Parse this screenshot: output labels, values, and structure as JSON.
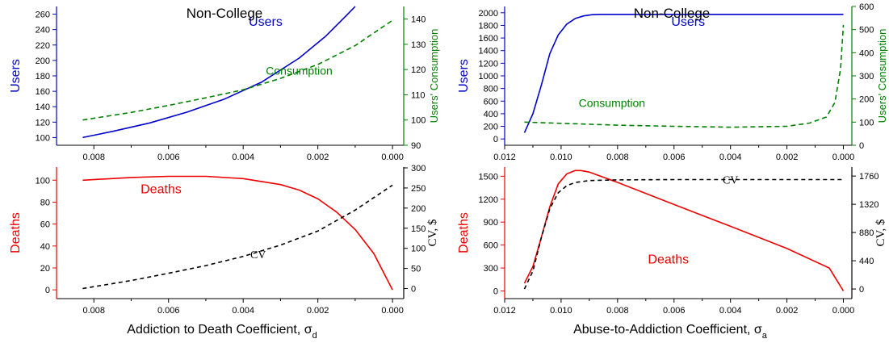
{
  "colors": {
    "blue": "#0000cc",
    "green": "#008000",
    "red": "#ee0000",
    "black": "#000000"
  },
  "chart_data": [
    {
      "id": "lt",
      "type": "line",
      "title": "Non-College",
      "xlim": [
        0.009,
        -0.0003
      ],
      "xticks": [
        0.008,
        0.006,
        0.004,
        0.002,
        0.0
      ],
      "xticklabels": [
        "0.008",
        "0.006",
        "0.004",
        "0.002",
        "0.000"
      ],
      "left_axis": {
        "label": "Users",
        "ylim": [
          90,
          270
        ],
        "ticks": [
          100,
          120,
          140,
          160,
          180,
          200,
          220,
          240,
          260
        ],
        "color": "blue"
      },
      "right_axis": {
        "label": "Users' Consumption",
        "ylim": [
          90,
          145
        ],
        "ticks": [
          90,
          100,
          110,
          120,
          130,
          140
        ],
        "color": "green"
      },
      "series": [
        {
          "name": "Users",
          "axis": "left",
          "color": "blue",
          "dash": "",
          "x": [
            0.0083,
            0.0075,
            0.0065,
            0.0055,
            0.0045,
            0.0035,
            0.0025,
            0.0018,
            0.0012,
            0.001
          ],
          "y": [
            100,
            108,
            119,
            133,
            150,
            172,
            203,
            231,
            260,
            270
          ]
        },
        {
          "name": "Consumption",
          "axis": "right",
          "color": "green",
          "dash": "6,4",
          "x": [
            0.0083,
            0.007,
            0.006,
            0.005,
            0.004,
            0.003,
            0.002,
            0.001,
            0.0
          ],
          "y": [
            100,
            103,
            105.8,
            108.8,
            112,
            116.5,
            122,
            129.5,
            139.5
          ]
        }
      ],
      "annotations": [
        {
          "text": "Users",
          "series": 0,
          "color": "blue"
        },
        {
          "text": "Consumption",
          "series": 1,
          "color": "green"
        }
      ]
    },
    {
      "id": "lb",
      "type": "line",
      "xlim": [
        0.009,
        -0.0003
      ],
      "xticks": [
        0.008,
        0.006,
        0.004,
        0.002,
        0.0
      ],
      "xticklabels": [
        "0.008",
        "0.006",
        "0.004",
        "0.002",
        "0.000"
      ],
      "xlabel": "Addiction to Death Coefficient, σ",
      "xlabel_sub": "d",
      "left_axis": {
        "label": "Deaths",
        "ylim": [
          -8,
          112
        ],
        "ticks": [
          0,
          20,
          40,
          60,
          80,
          100
        ],
        "color": "red"
      },
      "right_axis": {
        "label": "CV, $",
        "ylim": [
          -25,
          302
        ],
        "ticks": [
          0,
          50,
          100,
          150,
          200,
          250,
          300
        ],
        "color": "black"
      },
      "series": [
        {
          "name": "Deaths",
          "axis": "left",
          "color": "red",
          "dash": "",
          "x": [
            0.0083,
            0.007,
            0.006,
            0.005,
            0.004,
            0.003,
            0.0025,
            0.002,
            0.0015,
            0.001,
            0.0005,
            0.0
          ],
          "y": [
            100,
            102.5,
            103.5,
            103.5,
            101.5,
            96,
            91,
            83,
            71,
            55,
            33,
            0
          ]
        },
        {
          "name": "CV",
          "axis": "right",
          "color": "black",
          "dash": "5,4",
          "x": [
            0.0083,
            0.007,
            0.006,
            0.005,
            0.004,
            0.003,
            0.002,
            0.001,
            0.0
          ],
          "y": [
            0,
            20,
            38,
            57,
            80,
            108,
            143,
            195,
            257
          ]
        }
      ],
      "annotations": [
        {
          "text": "Deaths",
          "series": 0,
          "color": "red"
        },
        {
          "text": "CV",
          "series": 1,
          "color": "black"
        }
      ]
    },
    {
      "id": "rt",
      "type": "line",
      "title": "Non-College",
      "xlim": [
        0.012,
        -0.0003
      ],
      "xticks": [
        0.012,
        0.01,
        0.008,
        0.006,
        0.004,
        0.002,
        0.0
      ],
      "xticklabels": [
        "0.012",
        "0.010",
        "0.008",
        "0.006",
        "0.004",
        "0.002",
        "0.000"
      ],
      "left_axis": {
        "label": "Users",
        "ylim": [
          -100,
          2100
        ],
        "ticks": [
          0,
          200,
          400,
          600,
          800,
          1000,
          1200,
          1400,
          1600,
          1800,
          2000
        ],
        "color": "blue"
      },
      "right_axis": {
        "label": "Users' Consumption",
        "ylim": [
          0,
          600
        ],
        "ticks": [
          0,
          100,
          200,
          300,
          400,
          500,
          600
        ],
        "color": "green"
      },
      "series": [
        {
          "name": "Users",
          "axis": "left",
          "color": "blue",
          "dash": "",
          "x": [
            0.0113,
            0.011,
            0.0107,
            0.0104,
            0.0101,
            0.0098,
            0.0095,
            0.0092,
            0.0089,
            0.0086,
            0.0083,
            0.008,
            0.006,
            0.003,
            0.0
          ],
          "y": [
            100,
            400,
            850,
            1350,
            1650,
            1820,
            1910,
            1950,
            1970,
            1975,
            1975,
            1975,
            1975,
            1975,
            1975
          ]
        },
        {
          "name": "Consumption",
          "axis": "right",
          "color": "green",
          "dash": "6,4",
          "x": [
            0.0113,
            0.01,
            0.008,
            0.006,
            0.004,
            0.002,
            0.0012,
            0.0006,
            0.0003,
            0.0001,
            0.0
          ],
          "y": [
            100,
            95,
            87,
            82,
            78,
            82,
            96,
            122,
            185,
            330,
            520
          ]
        }
      ],
      "annotations": [
        {
          "text": "Users",
          "series": 0,
          "color": "blue"
        },
        {
          "text": "Consumption",
          "series": 1,
          "color": "green"
        }
      ]
    },
    {
      "id": "rb",
      "type": "line",
      "xlim": [
        0.012,
        -0.0003
      ],
      "xticks": [
        0.012,
        0.01,
        0.008,
        0.006,
        0.004,
        0.002,
        0.0
      ],
      "xticklabels": [
        "0.012",
        "0.010",
        "0.008",
        "0.006",
        "0.004",
        "0.002",
        "0.000"
      ],
      "xlabel": "Abuse-to-Addiction Coefficient, σ",
      "xlabel_sub": "a",
      "left_axis": {
        "label": "Deaths",
        "ylim": [
          -100,
          1620
        ],
        "ticks": [
          0,
          300,
          600,
          900,
          1200,
          1500
        ],
        "color": "red"
      },
      "right_axis": {
        "label": "CV, $",
        "ylim": [
          -150,
          1900
        ],
        "ticks": [
          0,
          440,
          880,
          1320,
          1760
        ],
        "color": "black"
      },
      "series": [
        {
          "name": "Deaths",
          "axis": "left",
          "color": "red",
          "dash": "",
          "x": [
            0.0113,
            0.011,
            0.0107,
            0.0104,
            0.0101,
            0.0098,
            0.0095,
            0.0093,
            0.009,
            0.008,
            0.006,
            0.004,
            0.002,
            0.0005,
            0.0
          ],
          "y": [
            100,
            320,
            700,
            1100,
            1400,
            1530,
            1575,
            1575,
            1555,
            1420,
            1130,
            845,
            555,
            300,
            0
          ]
        },
        {
          "name": "CV",
          "axis": "right",
          "color": "black",
          "dash": "5,4",
          "x": [
            0.0113,
            0.011,
            0.0107,
            0.0104,
            0.0101,
            0.0098,
            0.0095,
            0.009,
            0.008,
            0.006,
            0.003,
            0.0
          ],
          "y": [
            0,
            280,
            800,
            1250,
            1500,
            1610,
            1660,
            1690,
            1700,
            1705,
            1705,
            1705
          ]
        }
      ],
      "annotations": [
        {
          "text": "CV",
          "series": 1,
          "color": "black"
        },
        {
          "text": "Deaths",
          "series": 0,
          "color": "red"
        }
      ]
    }
  ]
}
